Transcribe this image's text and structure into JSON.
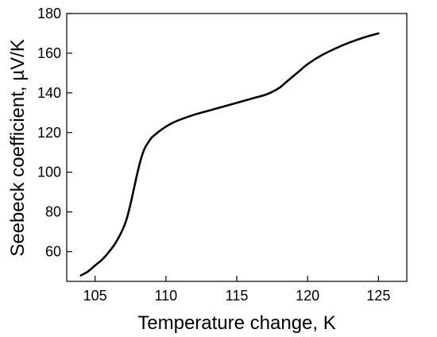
{
  "chart_data": {
    "type": "line",
    "title": "",
    "xlabel": "Temperature change, K",
    "ylabel": "Seebeck coefficient, µV/K",
    "xlim": [
      103,
      127
    ],
    "ylim": [
      45,
      180
    ],
    "xticks": [
      105,
      110,
      115,
      120,
      125
    ],
    "yticks": [
      60,
      80,
      100,
      120,
      140,
      160,
      180
    ],
    "grid": false,
    "legend": "none",
    "line_color": "#000000",
    "series": [
      {
        "x": [
          104,
          104.5,
          105,
          105.5,
          106,
          106.5,
          107,
          107.25,
          107.5,
          107.75,
          108,
          108.25,
          108.5,
          108.75,
          109,
          109.25,
          109.5,
          110,
          110.5,
          111,
          112,
          113,
          114,
          115,
          116,
          117,
          117.5,
          118,
          118.5,
          119,
          119.5,
          120,
          121,
          122,
          123,
          124,
          125
        ],
        "y": [
          48,
          50,
          53,
          56,
          60,
          65,
          72,
          77,
          84,
          92,
          100,
          107,
          112,
          115,
          117.5,
          119,
          120.5,
          123,
          125,
          126.5,
          129,
          131,
          133,
          135,
          137,
          139,
          140.5,
          142.5,
          145.5,
          148.5,
          151.5,
          154.5,
          159,
          162.5,
          165.5,
          168,
          170
        ]
      }
    ]
  }
}
